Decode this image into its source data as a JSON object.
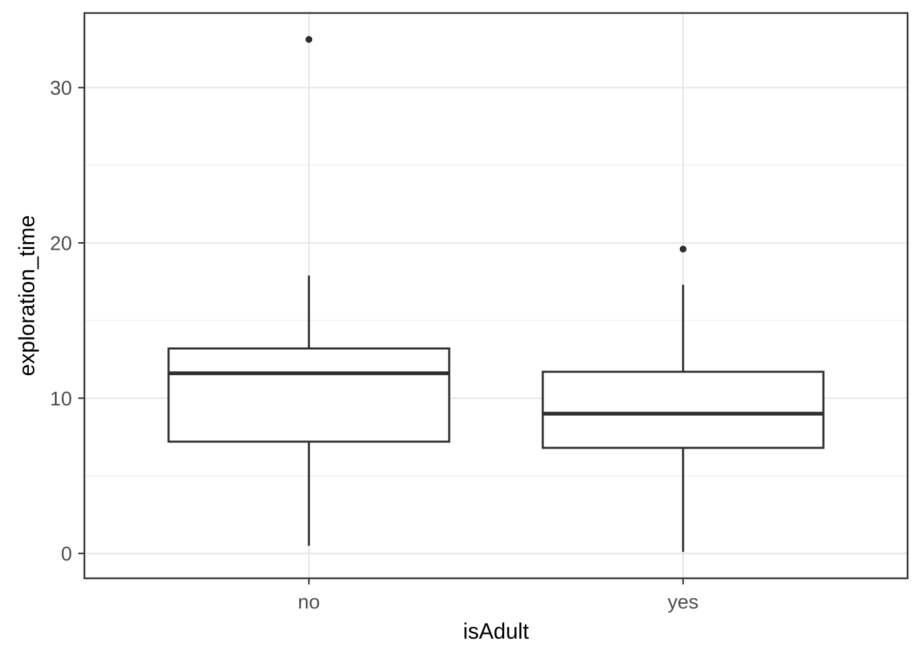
{
  "chart_data": {
    "type": "boxplot",
    "title": "",
    "xlabel": "isAdult",
    "ylabel": "exploration_time",
    "categories": [
      "no",
      "yes"
    ],
    "series": [
      {
        "category": "no",
        "lower_whisker": 0.5,
        "q1": 7.2,
        "median": 11.6,
        "q3": 13.2,
        "upper_whisker": 17.9,
        "outliers": [
          33.1
        ]
      },
      {
        "category": "yes",
        "lower_whisker": 0.1,
        "q1": 6.8,
        "median": 9.0,
        "q3": 11.7,
        "upper_whisker": 17.3,
        "outliers": [
          19.6
        ]
      }
    ],
    "y_ticks": [
      0,
      10,
      20,
      30
    ],
    "y_minor_ticks": [
      5,
      15,
      25
    ],
    "ylim": [
      -1.6,
      34.8
    ],
    "grid": true,
    "legend": "none",
    "box_fill": "#ffffff",
    "colors": {
      "box_stroke": "#2e2e2e",
      "median_stroke": "#2e2e2e",
      "outlier": "#2e2e2e",
      "grid_major": "#e8e8e8",
      "grid_minor": "#f2f2f2",
      "panel_border": "#333333",
      "tick_mark": "#333333",
      "tick_label": "#4d4d4d",
      "axis_title": "#000000",
      "background": "#ffffff"
    }
  }
}
